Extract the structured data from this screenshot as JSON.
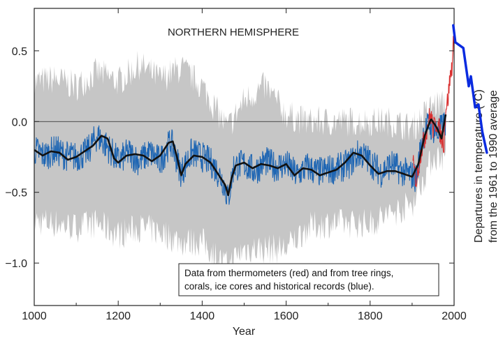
{
  "chart_data": {
    "type": "line",
    "title": "NORTHERN HEMISPHERE",
    "xlabel": "Year",
    "ylabel": "Departures in temperature (°C) from the 1961 to 1990 average",
    "xlim": [
      1000,
      2000
    ],
    "ylim": [
      -1.3,
      0.8
    ],
    "x_ticks": [
      1000,
      1200,
      1400,
      1600,
      1800,
      2000
    ],
    "y_ticks": [
      -1.0,
      -0.5,
      0.0,
      0.5
    ],
    "x_tick_labels": [
      "1000",
      "1200",
      "1400",
      "1600",
      "1800",
      "2000"
    ],
    "y_tick_labels": [
      "−1.0",
      "−0.5",
      "0.0",
      "0.5"
    ],
    "reference_line": 0.0,
    "annotation_lines": [
      "Data from thermometers (red) and from tree rings,",
      "corals, ice cores and historical records (blue)."
    ],
    "series": [
      {
        "role": "uncertainty",
        "color": "#c6c6c6",
        "x": [
          1000,
          1050,
          1100,
          1150,
          1200,
          1250,
          1300,
          1350,
          1400,
          1450,
          1460,
          1500,
          1550,
          1600,
          1650,
          1700,
          1750,
          1800,
          1850,
          1900,
          1950,
          1980
        ],
        "upper": [
          0.28,
          0.3,
          0.25,
          0.35,
          0.28,
          0.4,
          0.3,
          0.38,
          0.25,
          0.0,
          -0.05,
          0.15,
          0.25,
          0.05,
          0.0,
          0.0,
          0.0,
          0.0,
          0.0,
          -0.05,
          0.12,
          0.12
        ],
        "lower": [
          -0.7,
          -0.72,
          -0.75,
          -0.72,
          -0.8,
          -0.75,
          -0.78,
          -0.85,
          -0.85,
          -1.0,
          -1.02,
          -0.9,
          -0.9,
          -0.9,
          -0.75,
          -0.72,
          -0.72,
          -0.72,
          -0.65,
          -0.58,
          -0.25,
          -0.25
        ]
      },
      {
        "role": "proxy-reconstruction",
        "color": "#1f66b3",
        "x": [
          1000,
          1025,
          1050,
          1075,
          1100,
          1125,
          1150,
          1175,
          1200,
          1225,
          1250,
          1275,
          1300,
          1325,
          1350,
          1375,
          1400,
          1425,
          1450,
          1462,
          1475,
          1500,
          1525,
          1550,
          1575,
          1600,
          1625,
          1650,
          1675,
          1700,
          1725,
          1750,
          1775,
          1800,
          1825,
          1850,
          1875,
          1900,
          1910,
          1925,
          1940,
          1950,
          1960,
          1970,
          1980
        ],
        "y": [
          -0.2,
          -0.24,
          -0.2,
          -0.24,
          -0.25,
          -0.22,
          -0.1,
          -0.18,
          -0.28,
          -0.22,
          -0.28,
          -0.22,
          -0.28,
          -0.14,
          -0.36,
          -0.22,
          -0.25,
          -0.3,
          -0.42,
          -0.55,
          -0.32,
          -0.3,
          -0.35,
          -0.28,
          -0.32,
          -0.3,
          -0.38,
          -0.32,
          -0.36,
          -0.34,
          -0.33,
          -0.3,
          -0.22,
          -0.28,
          -0.36,
          -0.3,
          -0.35,
          -0.38,
          -0.4,
          -0.1,
          -0.02,
          -0.05,
          -0.08,
          -0.05,
          0.0
        ]
      },
      {
        "role": "instrumental",
        "color": "#d93030",
        "x": [
          1902,
          1910,
          1920,
          1930,
          1940,
          1945,
          1950,
          1960,
          1970,
          1976,
          1980,
          1985,
          1990,
          1995,
          1998,
          2000
        ],
        "y": [
          -0.3,
          -0.42,
          -0.22,
          -0.12,
          0.02,
          0.05,
          -0.05,
          0.0,
          -0.12,
          -0.15,
          0.1,
          0.15,
          0.3,
          0.4,
          0.55,
          0.48
        ]
      },
      {
        "role": "smoothed",
        "color": "#111111",
        "x": [
          1000,
          1020,
          1040,
          1060,
          1080,
          1100,
          1120,
          1140,
          1160,
          1175,
          1190,
          1200,
          1220,
          1240,
          1260,
          1280,
          1300,
          1320,
          1330,
          1340,
          1350,
          1360,
          1380,
          1400,
          1420,
          1440,
          1455,
          1462,
          1470,
          1480,
          1500,
          1520,
          1540,
          1560,
          1580,
          1600,
          1620,
          1640,
          1660,
          1680,
          1700,
          1720,
          1740,
          1760,
          1780,
          1800,
          1820,
          1840,
          1860,
          1880,
          1900,
          1915,
          1930,
          1945,
          1960,
          1970,
          1980
        ],
        "y": [
          -0.2,
          -0.24,
          -0.21,
          -0.22,
          -0.27,
          -0.25,
          -0.21,
          -0.17,
          -0.1,
          -0.12,
          -0.26,
          -0.29,
          -0.24,
          -0.23,
          -0.24,
          -0.28,
          -0.24,
          -0.15,
          -0.14,
          -0.25,
          -0.38,
          -0.3,
          -0.24,
          -0.25,
          -0.29,
          -0.38,
          -0.45,
          -0.52,
          -0.4,
          -0.31,
          -0.29,
          -0.33,
          -0.3,
          -0.31,
          -0.33,
          -0.3,
          -0.38,
          -0.33,
          -0.34,
          -0.38,
          -0.36,
          -0.34,
          -0.29,
          -0.22,
          -0.24,
          -0.31,
          -0.37,
          -0.35,
          -0.35,
          -0.37,
          -0.39,
          -0.3,
          -0.1,
          0.02,
          -0.05,
          -0.12,
          0.05
        ]
      }
    ],
    "overlay_annotation": {
      "color": "#0a2be0",
      "x": [
        1998,
        2003,
        2022,
        2035,
        2040,
        2050,
        2058,
        2067,
        2078
      ],
      "y": [
        0.68,
        0.56,
        0.52,
        0.25,
        0.32,
        0.1,
        0.12,
        -0.07,
        -0.22
      ]
    }
  }
}
